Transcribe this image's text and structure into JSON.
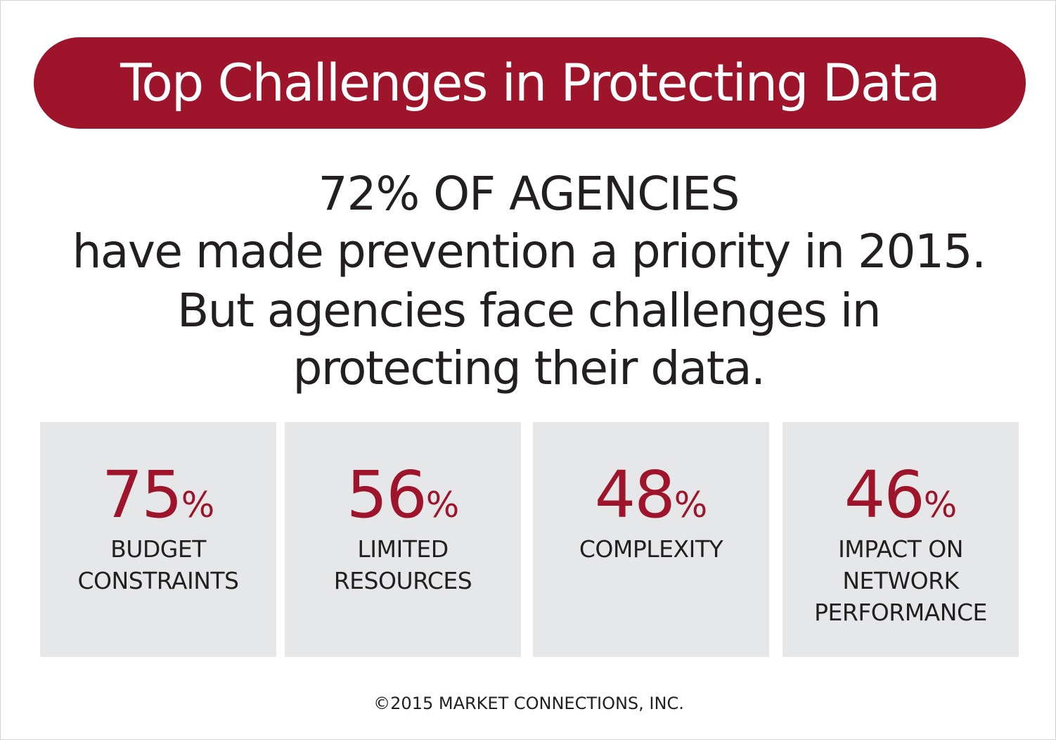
{
  "title": "Top Challenges in Protecting Data",
  "headline": {
    "line1": "72% OF AGENCIES",
    "line2": "have made prevention a priority in 2015.",
    "line3": "But agencies face challenges in",
    "line4": "protecting their data."
  },
  "stats": [
    {
      "value": "75",
      "unit": "%",
      "label_lines": [
        "BUDGET",
        "CONSTRAINTS"
      ]
    },
    {
      "value": "56",
      "unit": "%",
      "label_lines": [
        "LIMITED",
        "RESOURCES"
      ]
    },
    {
      "value": "48",
      "unit": "%",
      "label_lines": [
        "COMPLEXITY"
      ]
    },
    {
      "value": "46",
      "unit": "%",
      "label_lines": [
        "IMPACT ON",
        "NETWORK",
        "PERFORMANCE"
      ]
    }
  ],
  "footer": "©2015 MARKET CONNECTIONS, INC.",
  "colors": {
    "accent": "#9d142b",
    "text": "#231f20",
    "box_background": "#e6e7e8",
    "page_background": "#ffffff"
  }
}
